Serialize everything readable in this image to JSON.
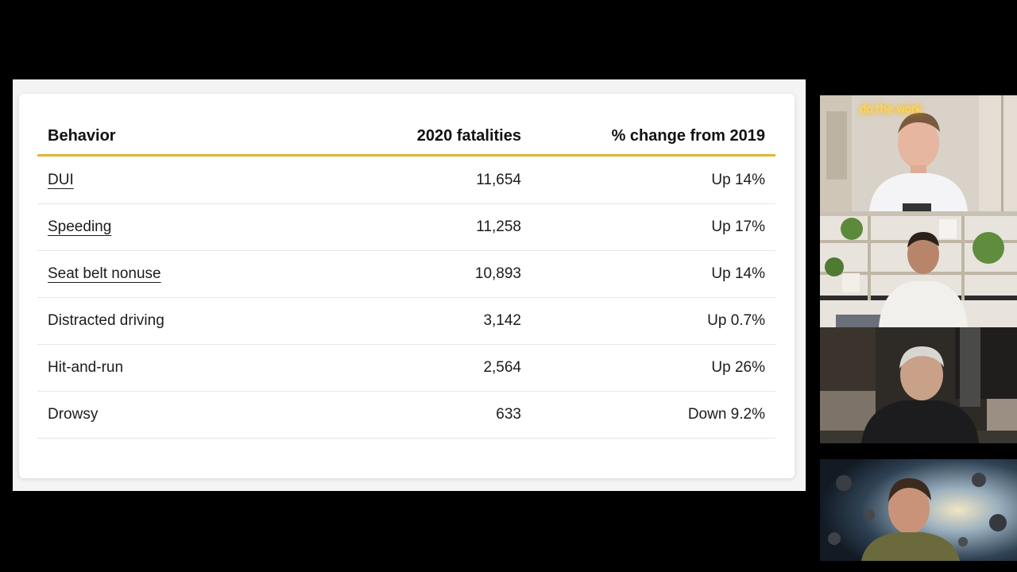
{
  "table": {
    "headers": {
      "behavior": "Behavior",
      "fatalities": "2020 fatalities",
      "change": "% change from 2019"
    },
    "rows": [
      {
        "behavior": "DUI",
        "fatalities": "11,654",
        "change": "Up 14%",
        "is_link": true
      },
      {
        "behavior": "Speeding",
        "fatalities": "11,258",
        "change": "Up 17%",
        "is_link": true
      },
      {
        "behavior": "Seat belt nonuse",
        "fatalities": "10,893",
        "change": "Up 14%",
        "is_link": true
      },
      {
        "behavior": "Distracted driving",
        "fatalities": "3,142",
        "change": "Up 0.7%",
        "is_link": false
      },
      {
        "behavior": "Hit-and-run",
        "fatalities": "2,564",
        "change": "Up 26%",
        "is_link": false
      },
      {
        "behavior": "Drowsy",
        "fatalities": "633",
        "change": "Down 9.2%",
        "is_link": false
      }
    ]
  },
  "participants": {
    "tile1": {
      "neon_sign": "do the work"
    }
  },
  "colors": {
    "header_rule": "#e2b631",
    "background": "#000000",
    "slide": "#ffffff"
  }
}
